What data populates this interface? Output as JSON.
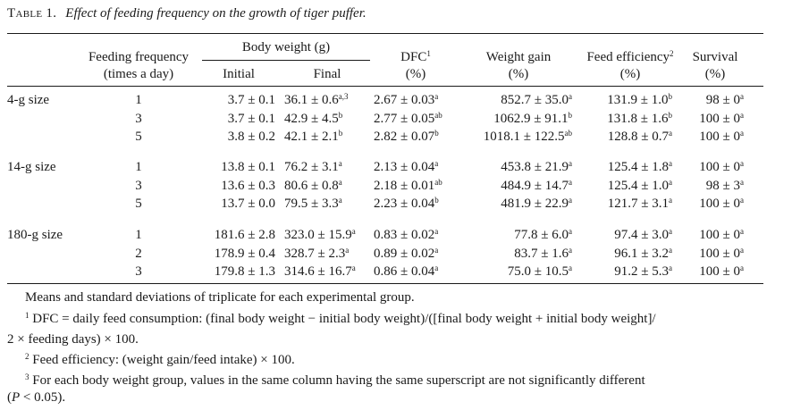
{
  "table": {
    "label": "Table 1.",
    "title": "Effect of feeding frequency on the growth of tiger puffer.",
    "headers": {
      "feeding_frequency": "Feeding frequency",
      "feeding_unit": "(times a day)",
      "body_weight": "Body weight (g)",
      "initial": "Initial",
      "final": "Final",
      "dfc": "DFC",
      "dfc_sup": "1",
      "weight_gain": "Weight gain",
      "feed_efficiency": "Feed efficiency",
      "feed_efficiency_sup": "2",
      "survival": "Survival",
      "pct": "(%)"
    },
    "groups": [
      {
        "name": "4-g size",
        "rows": [
          {
            "freq": "1",
            "initial": "3.7 ± 0.1",
            "final": "36.1 ± 0.6",
            "final_sup": "a,3",
            "dfc": "2.67 ± 0.03",
            "dfc_sup": "a",
            "wg": "852.7 ± 35.0",
            "wg_sup": "a",
            "fe": "131.9 ± 1.0",
            "fe_sup": "b",
            "surv": "98 ± 0",
            "surv_sup": "a"
          },
          {
            "freq": "3",
            "initial": "3.7 ± 0.1",
            "final": "42.9 ± 4.5",
            "final_sup": "b",
            "dfc": "2.77 ± 0.05",
            "dfc_sup": "ab",
            "wg": "1062.9 ± 91.1",
            "wg_sup": "b",
            "fe": "131.8 ± 1.6",
            "fe_sup": "b",
            "surv": "100 ± 0",
            "surv_sup": "a"
          },
          {
            "freq": "5",
            "initial": "3.8 ± 0.2",
            "final": "42.1 ± 2.1",
            "final_sup": "b",
            "dfc": "2.82 ± 0.07",
            "dfc_sup": "b",
            "wg": "1018.1 ± 122.5",
            "wg_sup": "ab",
            "fe": "128.8 ± 0.7",
            "fe_sup": "a",
            "surv": "100 ± 0",
            "surv_sup": "a"
          }
        ]
      },
      {
        "name": "14-g size",
        "rows": [
          {
            "freq": "1",
            "initial": "13.8 ± 0.1",
            "final": "76.2 ± 3.1",
            "final_sup": "a",
            "dfc": "2.13 ± 0.04",
            "dfc_sup": "a",
            "wg": "453.8 ± 21.9",
            "wg_sup": "a",
            "fe": "125.4 ± 1.8",
            "fe_sup": "a",
            "surv": "100 ± 0",
            "surv_sup": "a"
          },
          {
            "freq": "3",
            "initial": "13.6 ± 0.3",
            "final": "80.6 ± 0.8",
            "final_sup": "a",
            "dfc": "2.18 ± 0.01",
            "dfc_sup": "ab",
            "wg": "484.9 ± 14.7",
            "wg_sup": "a",
            "fe": "125.4 ± 1.0",
            "fe_sup": "a",
            "surv": "98 ± 3",
            "surv_sup": "a"
          },
          {
            "freq": "5",
            "initial": "13.7 ± 0.0",
            "final": "79.5 ± 3.3",
            "final_sup": "a",
            "dfc": "2.23 ± 0.04",
            "dfc_sup": "b",
            "wg": "481.9 ± 22.9",
            "wg_sup": "a",
            "fe": "121.7 ± 3.1",
            "fe_sup": "a",
            "surv": "100 ± 0",
            "surv_sup": "a"
          }
        ]
      },
      {
        "name": "180-g size",
        "rows": [
          {
            "freq": "1",
            "initial": "181.6 ± 2.8",
            "final": "323.0 ± 15.9",
            "final_sup": "a",
            "dfc": "0.83 ± 0.02",
            "dfc_sup": "a",
            "wg": "77.8 ± 6.0",
            "wg_sup": "a",
            "fe": "97.4 ± 3.0",
            "fe_sup": "a",
            "surv": "100 ± 0",
            "surv_sup": "a"
          },
          {
            "freq": "2",
            "initial": "178.9 ± 0.4",
            "final": "328.7 ± 2.3",
            "final_sup": "a",
            "dfc": "0.89 ± 0.02",
            "dfc_sup": "a",
            "wg": "83.7 ± 1.6",
            "wg_sup": "a",
            "fe": "96.1 ± 3.2",
            "fe_sup": "a",
            "surv": "100 ± 0",
            "surv_sup": "a"
          },
          {
            "freq": "3",
            "initial": "179.8 ± 1.3",
            "final": "314.6 ± 16.7",
            "final_sup": "a",
            "dfc": "0.86 ± 0.04",
            "dfc_sup": "a",
            "wg": "75.0 ± 10.5",
            "wg_sup": "a",
            "fe": "91.2 ± 5.3",
            "fe_sup": "a",
            "surv": "100 ± 0",
            "surv_sup": "a"
          }
        ]
      }
    ],
    "footnotes": {
      "general": "Means and standard deviations of triplicate for each experimental group.",
      "n1_mark": "1",
      "n1_line1": "DFC = daily feed consumption: (final body weight − initial body weight)/([final body weight + initial body weight]/",
      "n1_line2": "2 × feeding days) × 100.",
      "n2_mark": "2",
      "n2": "Feed efficiency: (weight gain/feed intake) × 100.",
      "n3_mark": "3",
      "n3_line1": "For each body weight group, values in the same column having the same superscript are not significantly different",
      "n3_line2_open": "(",
      "n3_line2_p": "P",
      "n3_line2_rest": " < 0.05)."
    }
  }
}
